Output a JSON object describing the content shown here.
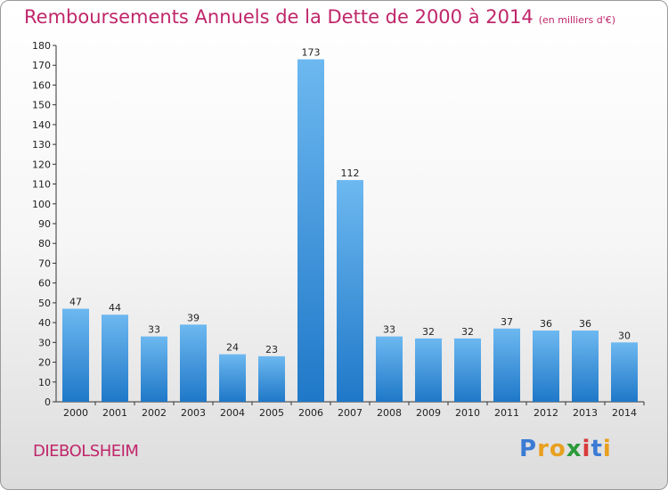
{
  "title": "Remboursements Annuels de la Dette de 2000 à 2014",
  "unit_note": "(en milliers d'€)",
  "commune": "DIEBOLSHEIM",
  "logo": {
    "letters": [
      "P",
      "r",
      "o",
      "x",
      "i",
      "t",
      "i"
    ],
    "colors": [
      "#3a7bd5",
      "#e8a020",
      "#e8a020",
      "#2b9a3a",
      "#d93a3a",
      "#3a7bd5",
      "#e8a020"
    ]
  },
  "colors": {
    "bar_light": "#6db8f0",
    "bar_dark": "#1f78c8",
    "title": "#c0266a"
  },
  "chart_data": {
    "type": "bar",
    "categories": [
      "2000",
      "2001",
      "2002",
      "2003",
      "2004",
      "2005",
      "2006",
      "2007",
      "2008",
      "2009",
      "2010",
      "2011",
      "2012",
      "2013",
      "2014"
    ],
    "values": [
      47,
      44,
      33,
      39,
      24,
      23,
      173,
      112,
      33,
      32,
      32,
      37,
      36,
      36,
      30
    ],
    "ylim": [
      0,
      180
    ],
    "yticks": [
      0,
      10,
      20,
      30,
      40,
      50,
      60,
      70,
      80,
      90,
      100,
      110,
      120,
      130,
      140,
      150,
      160,
      170,
      180
    ],
    "grid": false,
    "legend": "none"
  }
}
